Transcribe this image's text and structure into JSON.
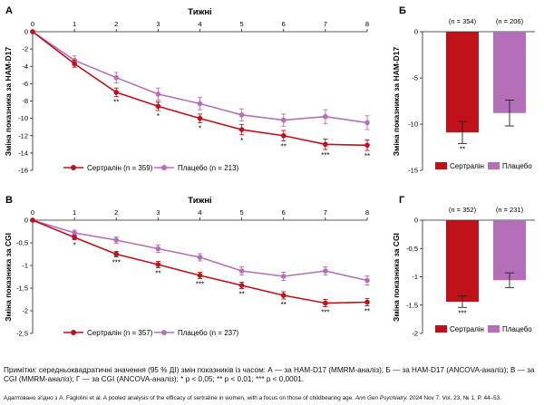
{
  "colors": {
    "sertraline": "#c0111b",
    "placebo": "#b56fb8"
  },
  "note": "Примітки: середньоквадратичні значення (95 % ДІ) змін показників із часом: А — за HAM-D17 (MMRM-аналіз); Б — за HAM-D17 (ANCOVA-аналіз); В — за CGI (MMRM-аналіз); Г — за CGI (ANCOVA-аналіз); * p < 0,05; ** p < 0,01; *** p < 0,0001.",
  "source": {
    "prefix": "Адаптовано згідно з A. Fagiolini et al. A pooled analysis of the efficacy of sertraline in women, with a focus on those of childbearing age. ",
    "journal": "Ann Gen Psychiatry.",
    "suffix": " 2024 Nov 7. Vol. 23, № 1. P. 44–53."
  },
  "chart_data": [
    {
      "id": "A",
      "panel_label": "А",
      "type": "line",
      "title": "Тижні",
      "ylabel": "Зміна показника за HAM-D17",
      "x": [
        0,
        1,
        2,
        3,
        4,
        5,
        6,
        7,
        8
      ],
      "xlim": [
        0,
        8
      ],
      "ylim": [
        -16,
        0
      ],
      "yticks": [
        0,
        -2,
        -4,
        -6,
        -8,
        -10,
        -12,
        -14,
        -16
      ],
      "series": [
        {
          "name": "Сертралін (n = 359)",
          "key": "sertraline",
          "values": [
            0,
            -3.7,
            -7.0,
            -8.6,
            -10.0,
            -11.3,
            -12.0,
            -13.0,
            -13.1
          ],
          "err": [
            0,
            0.4,
            0.5,
            0.5,
            0.5,
            0.6,
            0.6,
            0.6,
            0.6
          ]
        },
        {
          "name": "Плацебо (n = 213)",
          "key": "placebo",
          "values": [
            0,
            -3.3,
            -5.3,
            -7.2,
            -8.3,
            -9.6,
            -10.2,
            -9.8,
            -10.5
          ],
          "err": [
            0,
            0.5,
            0.6,
            0.7,
            0.7,
            0.7,
            0.7,
            0.8,
            0.8
          ]
        }
      ],
      "significance": [
        {
          "x": 2,
          "label": "**"
        },
        {
          "x": 3,
          "label": "*"
        },
        {
          "x": 4,
          "label": "*"
        },
        {
          "x": 5,
          "label": "*"
        },
        {
          "x": 6,
          "label": "**"
        },
        {
          "x": 7,
          "label": "***"
        },
        {
          "x": 8,
          "label": "**"
        }
      ]
    },
    {
      "id": "B",
      "panel_label": "Б",
      "type": "bar",
      "ylabel": "Зміна показника за HAM-D17",
      "categories": [
        "Сертралін",
        "Плацебо"
      ],
      "category_keys": [
        "sertraline",
        "placebo"
      ],
      "n_labels": [
        "(n = 354)",
        "(n = 206)"
      ],
      "values": [
        -10.9,
        -8.8
      ],
      "err": [
        1.2,
        1.4
      ],
      "ylim": [
        -15,
        0
      ],
      "yticks": [
        0,
        -5,
        -10,
        -15
      ],
      "significance": [
        {
          "bar": 0,
          "label": "**"
        }
      ]
    },
    {
      "id": "C",
      "panel_label": "В",
      "type": "line",
      "title": "Тижні",
      "ylabel": "Зміна показника за CGI",
      "x": [
        0,
        1,
        2,
        3,
        4,
        5,
        6,
        7,
        8
      ],
      "xlim": [
        0,
        8
      ],
      "ylim": [
        -2.5,
        0
      ],
      "yticks": [
        0,
        -0.5,
        -1,
        -1.5,
        -2,
        -2.5
      ],
      "series": [
        {
          "name": "Сертралін (n = 357)",
          "key": "sertraline",
          "values": [
            0,
            -0.38,
            -0.75,
            -0.98,
            -1.22,
            -1.44,
            -1.66,
            -1.83,
            -1.81
          ],
          "err": [
            0,
            0.05,
            0.06,
            0.07,
            0.07,
            0.07,
            0.08,
            0.08,
            0.08
          ]
        },
        {
          "name": "Плацебо (n = 237)",
          "key": "placebo",
          "values": [
            0,
            -0.28,
            -0.44,
            -0.63,
            -0.82,
            -1.12,
            -1.24,
            -1.12,
            -1.33
          ],
          "err": [
            0,
            0.06,
            0.07,
            0.08,
            0.08,
            0.09,
            0.09,
            0.09,
            0.1
          ]
        }
      ],
      "significance": [
        {
          "x": 1,
          "label": "*"
        },
        {
          "x": 2,
          "label": "***"
        },
        {
          "x": 3,
          "label": "**"
        },
        {
          "x": 4,
          "label": "***"
        },
        {
          "x": 5,
          "label": "**"
        },
        {
          "x": 6,
          "label": "**"
        },
        {
          "x": 7,
          "label": "***"
        },
        {
          "x": 8,
          "label": "**"
        }
      ]
    },
    {
      "id": "D",
      "panel_label": "Г",
      "type": "bar",
      "ylabel": "Зміна показника за CGI",
      "categories": [
        "Сертралін",
        "Плацебо"
      ],
      "category_keys": [
        "sertraline",
        "placebo"
      ],
      "n_labels": [
        "(n = 352)",
        "(n = 231)"
      ],
      "values": [
        -1.44,
        -1.06
      ],
      "err": [
        0.1,
        0.13
      ],
      "ylim": [
        -2,
        0
      ],
      "yticks": [
        0,
        -0.5,
        -1,
        -1.5,
        -2
      ],
      "significance": [
        {
          "bar": 0,
          "label": "***"
        }
      ]
    }
  ]
}
